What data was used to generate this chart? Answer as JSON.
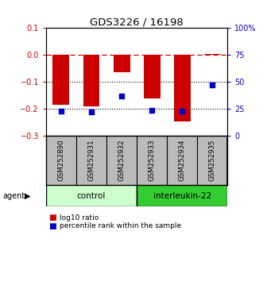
{
  "title": "GDS3226 / 16198",
  "samples": [
    "GSM252890",
    "GSM252931",
    "GSM252932",
    "GSM252933",
    "GSM252934",
    "GSM252935"
  ],
  "log10_ratio": [
    -0.185,
    -0.19,
    -0.065,
    -0.16,
    -0.245,
    0.005
  ],
  "percentile_rank": [
    23,
    22,
    37,
    24,
    23,
    47
  ],
  "groups": [
    {
      "label": "control",
      "samples": [
        0,
        1,
        2
      ],
      "color": "#ccffcc"
    },
    {
      "label": "interleukin-22",
      "samples": [
        3,
        4,
        5
      ],
      "color": "#33cc33"
    }
  ],
  "ylim_left": [
    -0.3,
    0.1
  ],
  "ylim_right": [
    0,
    100
  ],
  "yticks_left": [
    0.1,
    0,
    -0.1,
    -0.2,
    -0.3
  ],
  "yticks_right": [
    100,
    75,
    50,
    25,
    0
  ],
  "bar_color": "#cc0000",
  "dot_color": "#0000cc",
  "legend_bar_label": "log10 ratio",
  "legend_dot_label": "percentile rank within the sample",
  "agent_label": "agent",
  "background_color": "#ffffff",
  "plot_bg": "#ffffff",
  "label_bg": "#bbbbbb"
}
